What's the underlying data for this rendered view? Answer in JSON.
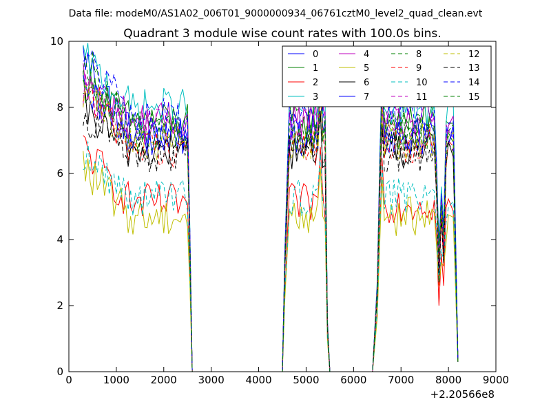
{
  "header": {
    "data_file": "Data file: modeM0/AS1A02_006T01_9000000934_06761cztM0_level2_quad_clean.evt"
  },
  "chart_data": {
    "type": "line",
    "title": "Quadrant 3 module wise count rates with 100.0s bins.",
    "xlabel": "",
    "ylabel": "",
    "x_offset_label": "+2.20566e8",
    "xlim": [
      0,
      9000
    ],
    "ylim": [
      0,
      10
    ],
    "x_ticks": [
      0,
      1000,
      2000,
      3000,
      4000,
      5000,
      6000,
      7000,
      8000,
      9000
    ],
    "y_ticks": [
      0,
      2,
      4,
      6,
      8,
      10
    ],
    "legend_location": "top-right",
    "legend_columns": 4,
    "x_segments": [
      {
        "start": 300,
        "end": 2500,
        "step": 50
      },
      {
        "start": 4500,
        "end": 5400,
        "step": 50
      },
      {
        "start": 6400,
        "end": 8200,
        "step": 50
      }
    ],
    "series": [
      {
        "name": "0",
        "color": "#0000ff",
        "linestyle": "solid",
        "base": 7.2,
        "spike": 9.6,
        "dip": 3.5
      },
      {
        "name": "1",
        "color": "#008000",
        "linestyle": "solid",
        "base": 7.6,
        "spike": 8.8,
        "dip": 3.8
      },
      {
        "name": "2",
        "color": "#ff0000",
        "linestyle": "solid",
        "base": 5.1,
        "spike": 6.8,
        "dip": 2.0
      },
      {
        "name": "3",
        "color": "#00bfbf",
        "linestyle": "solid",
        "base": 8.0,
        "spike": 9.5,
        "dip": 3.8
      },
      {
        "name": "4",
        "color": "#bf00bf",
        "linestyle": "solid",
        "base": 7.6,
        "spike": 8.9,
        "dip": 3.4
      },
      {
        "name": "5",
        "color": "#bfbf00",
        "linestyle": "solid",
        "base": 4.7,
        "spike": 6.2,
        "dip": 2.6
      },
      {
        "name": "6",
        "color": "#000000",
        "linestyle": "solid",
        "base": 6.7,
        "spike": 7.9,
        "dip": 3.0
      },
      {
        "name": "7",
        "color": "#0000ff",
        "linestyle": "solid",
        "base": 7.1,
        "spike": 8.4,
        "dip": 3.3
      },
      {
        "name": "8",
        "color": "#008000",
        "linestyle": "dashed",
        "base": 7.3,
        "spike": 9.6,
        "dip": 3.9
      },
      {
        "name": "9",
        "color": "#ff0000",
        "linestyle": "dashed",
        "base": 6.8,
        "spike": 8.7,
        "dip": 2.6
      },
      {
        "name": "10",
        "color": "#00bfbf",
        "linestyle": "dashed",
        "base": 5.3,
        "spike": 6.6,
        "dip": 2.7
      },
      {
        "name": "11",
        "color": "#bf00bf",
        "linestyle": "dashed",
        "base": 7.4,
        "spike": 8.5,
        "dip": 3.2
      },
      {
        "name": "12",
        "color": "#bfbf00",
        "linestyle": "dashed",
        "base": 7.0,
        "spike": 8.4,
        "dip": 3.4
      },
      {
        "name": "13",
        "color": "#000000",
        "linestyle": "dashed",
        "base": 6.6,
        "spike": 7.8,
        "dip": 2.7
      },
      {
        "name": "14",
        "color": "#0000ff",
        "linestyle": "dashed",
        "base": 7.7,
        "spike": 9.7,
        "dip": 3.6
      },
      {
        "name": "15",
        "color": "#008000",
        "linestyle": "dashed",
        "base": 7.2,
        "spike": 9.1,
        "dip": 3.5
      }
    ]
  }
}
